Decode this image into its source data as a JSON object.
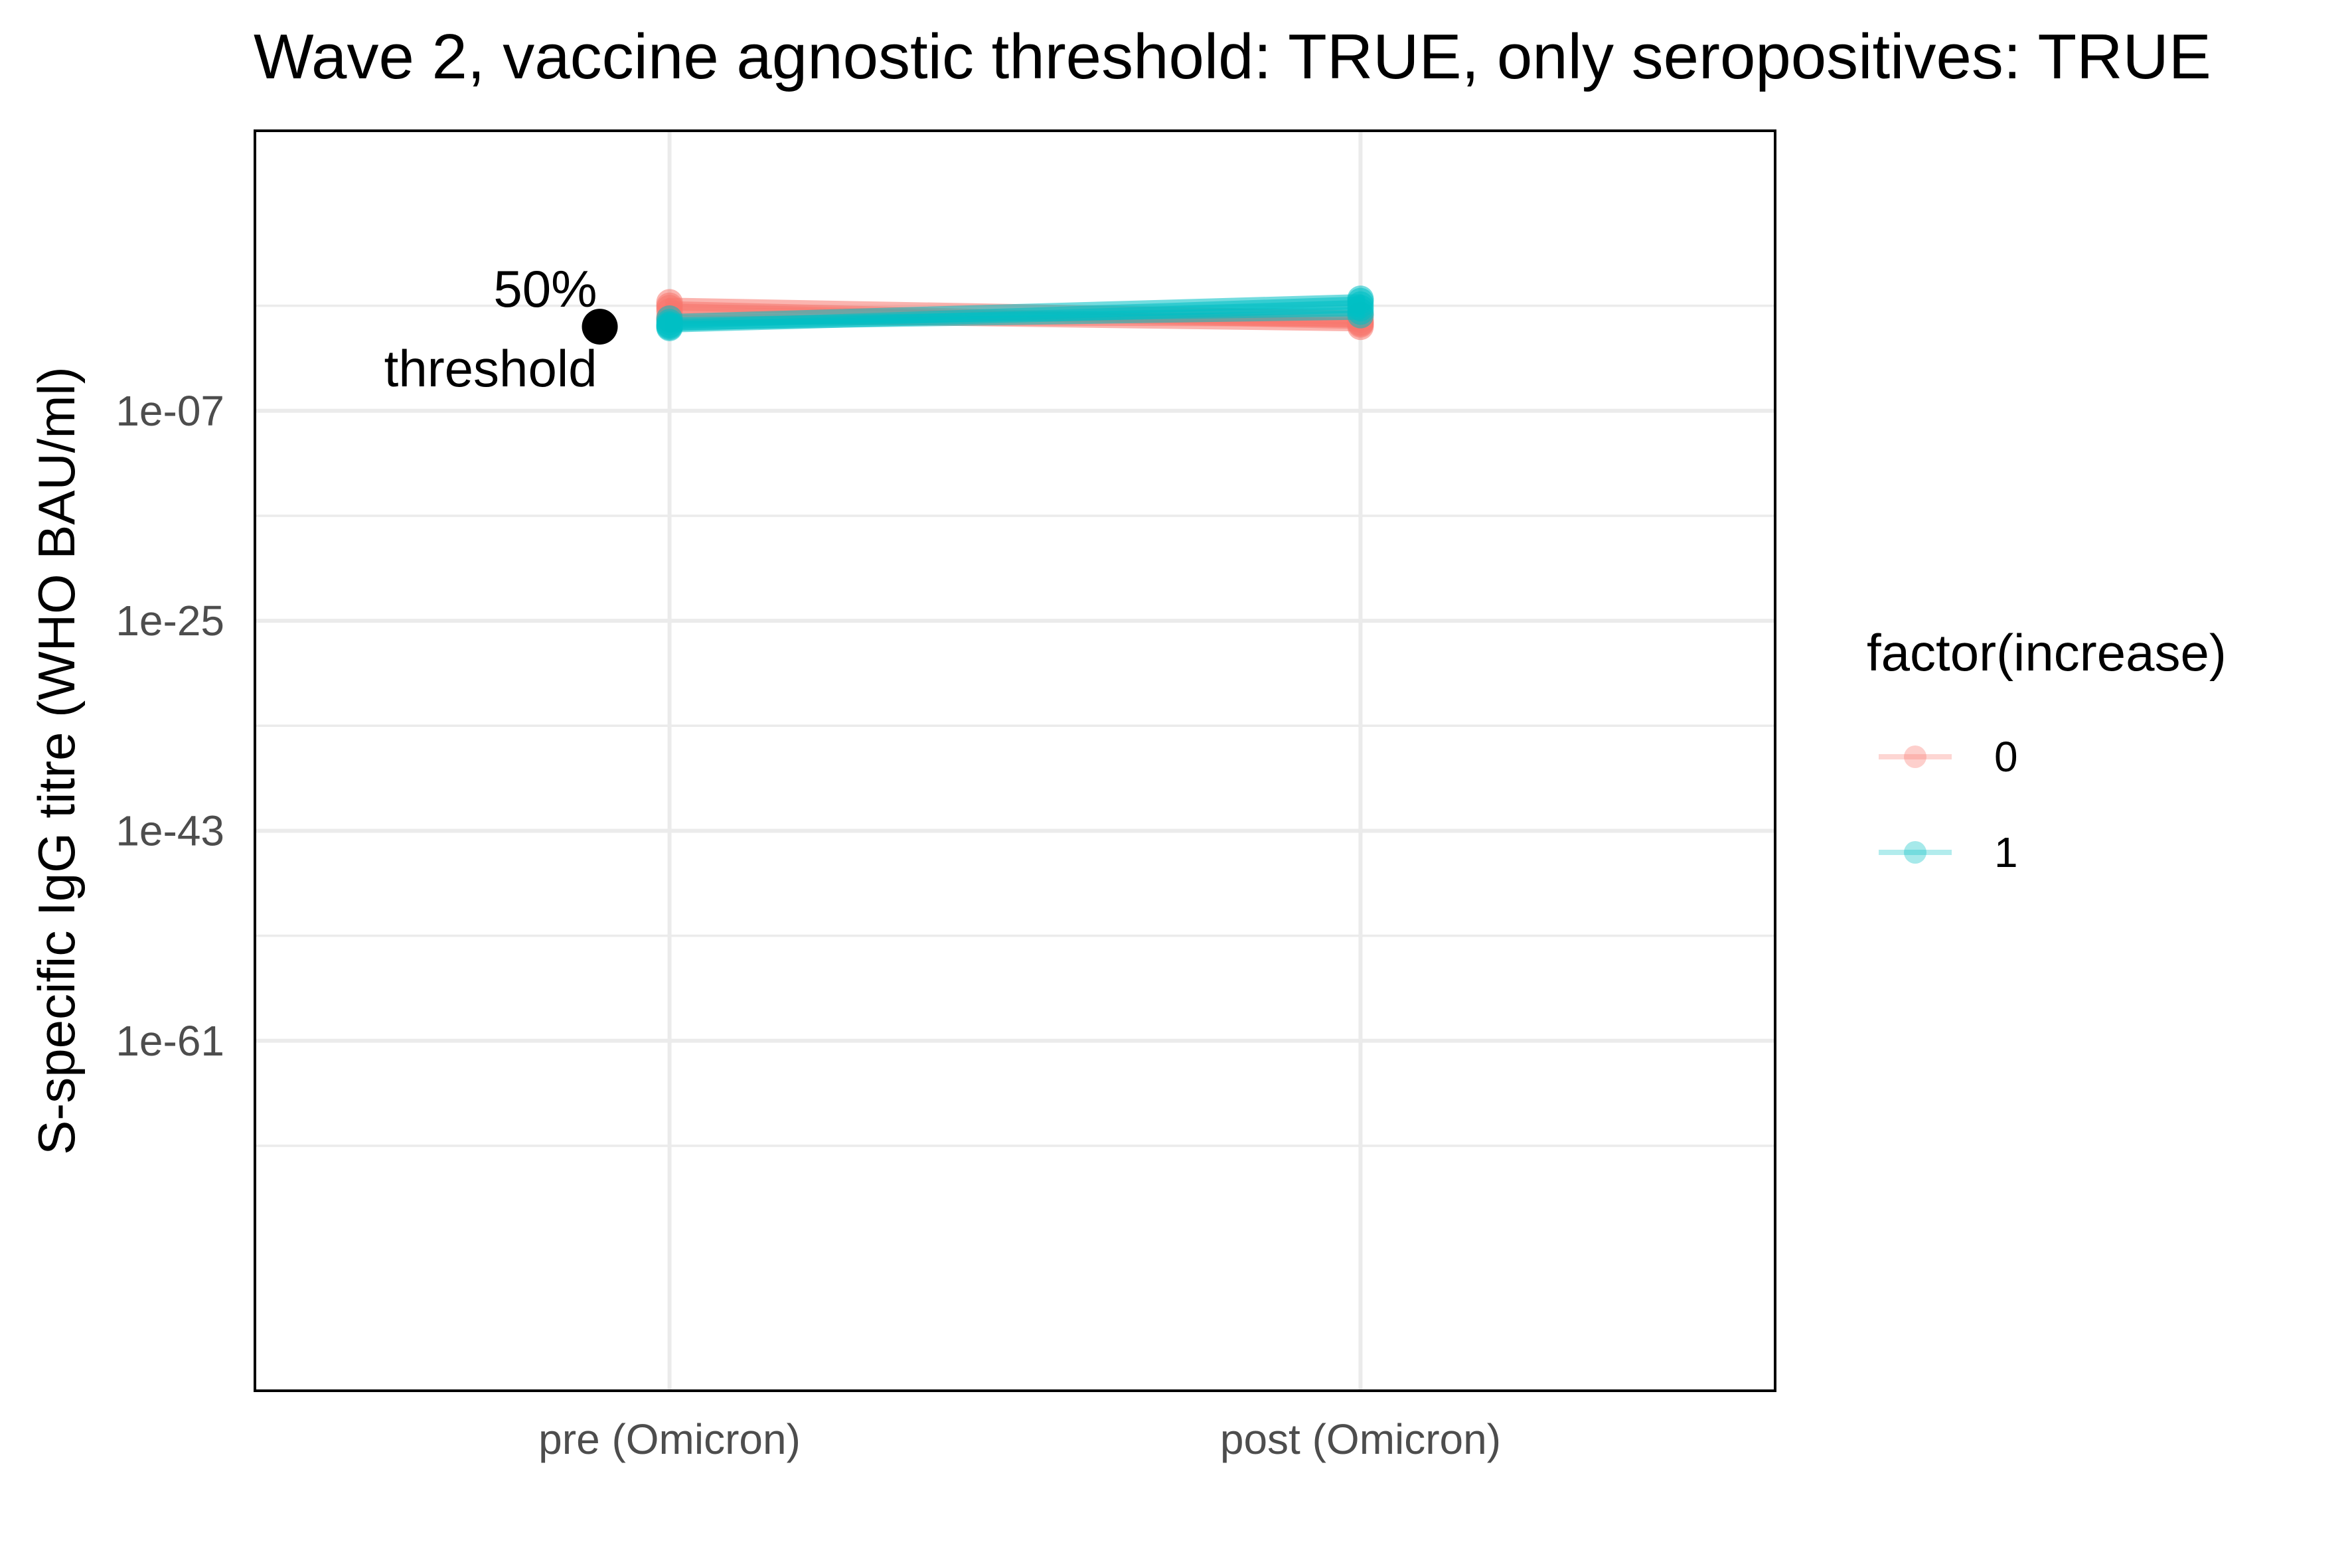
{
  "chart_data": {
    "type": "line",
    "title": "Wave 2, vaccine agnostic threshold: TRUE, only seropositives: TRUE",
    "xlabel": "",
    "ylabel": "S-specific IgG titre (WHO BAU/ml)",
    "categories": [
      "pre (Omicron)",
      "post (Omicron)"
    ],
    "y_scale": "log10",
    "ylim_log10": [
      -91,
      17
    ],
    "y_major_ticks_log10": [
      -61,
      -43,
      -25,
      -7
    ],
    "y_tick_labels": [
      "1e-61",
      "1e-43",
      "1e-25",
      "1e-07"
    ],
    "y_minor_ticks_log10": [
      -70,
      -52,
      -34,
      -16,
      2
    ],
    "grid": true,
    "legend": {
      "title": "factor(increase)",
      "position": "right",
      "entries": [
        {
          "label": "0",
          "color": "#F8766D"
        },
        {
          "label": "1",
          "color": "#00BFC4"
        }
      ]
    },
    "annotation": {
      "text_line1": "50%",
      "text_line2": "threshold",
      "x_category": "pre (Omicron)",
      "y_log10": 0.21
    },
    "series": [
      {
        "group": "0",
        "color": "#F8766D",
        "values_log10": [
          2.0,
          0.5
        ]
      },
      {
        "group": "0",
        "color": "#F8766D",
        "values_log10": [
          1.5,
          0.8
        ]
      },
      {
        "group": "0",
        "color": "#F8766D",
        "values_log10": [
          1.0,
          0.2
        ]
      },
      {
        "group": "0",
        "color": "#F8766D",
        "values_log10": [
          2.3,
          1.2
        ]
      },
      {
        "group": "0",
        "color": "#F8766D",
        "values_log10": [
          0.8,
          0.6
        ]
      },
      {
        "group": "0",
        "color": "#F8766D",
        "values_log10": [
          1.8,
          0.4
        ]
      },
      {
        "group": "1",
        "color": "#00BFC4",
        "values_log10": [
          0.1,
          1.8
        ]
      },
      {
        "group": "1",
        "color": "#00BFC4",
        "values_log10": [
          0.4,
          2.4
        ]
      },
      {
        "group": "1",
        "color": "#00BFC4",
        "values_log10": [
          0.6,
          1.5
        ]
      },
      {
        "group": "1",
        "color": "#00BFC4",
        "values_log10": [
          0.2,
          2.1
        ]
      },
      {
        "group": "1",
        "color": "#00BFC4",
        "values_log10": [
          0.9,
          2.6
        ]
      },
      {
        "group": "1",
        "color": "#00BFC4",
        "values_log10": [
          0.3,
          1.2
        ]
      }
    ]
  }
}
